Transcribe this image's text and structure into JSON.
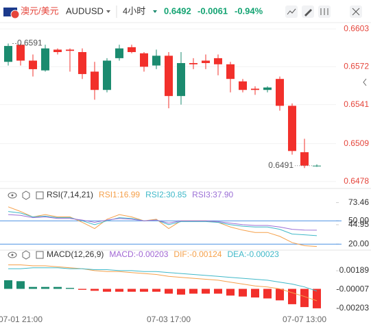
{
  "toolbar": {
    "pair": "澳元/美元",
    "symbol": "AUDUSD",
    "interval": "4小时",
    "price": "0.6492",
    "change": "-0.0061",
    "change_pct": "-0.94%"
  },
  "chart_data": [
    {
      "type": "candlestick",
      "up_color": "#1b8b6f",
      "down_color": "#f2302b",
      "axis_color": "#e5453b",
      "grid": true,
      "categories": [
        null,
        "07-01 21:00",
        null,
        null,
        null,
        null,
        null,
        null,
        null,
        null,
        null,
        null,
        null,
        "07-03 17:00",
        null,
        null,
        null,
        null,
        null,
        null,
        null,
        null,
        null,
        null,
        "07-07 13:00",
        null
      ],
      "open": [
        0.6576,
        0.659,
        0.6577,
        0.6569,
        0.6586,
        0.6586,
        0.6584,
        0.6568,
        0.6553,
        0.6579,
        0.6588,
        0.6583,
        0.6573,
        0.6581,
        0.6548,
        0.6575,
        0.6577,
        0.6579,
        0.6574,
        0.656,
        0.6554,
        0.6553,
        0.6562,
        0.654,
        0.6502,
        0.6491
      ],
      "high": [
        0.6591,
        0.6591,
        0.6582,
        0.659,
        0.6587,
        0.6587,
        0.6587,
        0.6576,
        0.6579,
        0.659,
        0.659,
        0.6584,
        0.6586,
        0.6584,
        0.6584,
        0.6579,
        0.6582,
        0.6582,
        0.6576,
        0.6562,
        0.6556,
        0.6556,
        0.6564,
        0.6542,
        0.6513,
        0.6492
      ],
      "low": [
        0.6573,
        0.6573,
        0.6564,
        0.6568,
        0.6582,
        0.6568,
        0.6562,
        0.6545,
        0.6551,
        0.6577,
        0.6583,
        0.6568,
        0.657,
        0.6538,
        0.6541,
        0.657,
        0.657,
        0.6565,
        0.6551,
        0.6551,
        0.6549,
        0.6551,
        0.6536,
        0.65,
        0.6489,
        0.649
      ],
      "close": [
        0.6589,
        0.6577,
        0.657,
        0.6587,
        0.6584,
        0.6585,
        0.6566,
        0.6553,
        0.6577,
        0.6587,
        0.6584,
        0.6572,
        0.6581,
        0.6548,
        0.6575,
        0.6574,
        0.6575,
        0.6574,
        0.6562,
        0.6553,
        0.6553,
        0.6555,
        0.654,
        0.6503,
        0.6491,
        0.6491
      ],
      "ylim": [
        0.6474,
        0.6607
      ],
      "yticks": [
        0.6603,
        0.6572,
        0.6541,
        0.6509,
        0.6478
      ],
      "high_mark": {
        "value": 0.6591,
        "label": "0.6591"
      },
      "last_mark": {
        "value": 0.6491,
        "label": "0.6491"
      }
    },
    {
      "type": "line",
      "title": "RSI(7,14,21)",
      "axis_color": "#333333",
      "level_color": "#4a90e2",
      "ylim": [
        14,
        74
      ],
      "yticks": [
        73.46,
        {
          "value": 50,
          "label": "50.00"
        },
        44.95,
        {
          "value": 20,
          "label": "20.00"
        }
      ],
      "levels": [
        50,
        20
      ],
      "series": [
        {
          "name": "RSI1:16.99",
          "color": "#f5a04a",
          "values": [
            68,
            62,
            55,
            58,
            55,
            55,
            48,
            40,
            52,
            58,
            55,
            50,
            52,
            40,
            50,
            50,
            50,
            48,
            42,
            38,
            35,
            35,
            30,
            22,
            18,
            16.99
          ]
        },
        {
          "name": "RSI2:30.85",
          "color": "#3fb8c8",
          "values": [
            62,
            60,
            55,
            56,
            54,
            54,
            50,
            45,
            50,
            54,
            53,
            50,
            51,
            45,
            49,
            49,
            49,
            48,
            45,
            43,
            42,
            42,
            39,
            33,
            32,
            30.85
          ]
        },
        {
          "name": "RSI3:37.90",
          "color": "#9b6fd6",
          "values": [
            58,
            57,
            54,
            55,
            53,
            53,
            51,
            48,
            51,
            53,
            52,
            50,
            51,
            47,
            50,
            50,
            50,
            49,
            47,
            45,
            44,
            44,
            42,
            39,
            38,
            37.9
          ]
        }
      ]
    },
    {
      "type": "macd",
      "title": "MACD(12,26,9)",
      "axis_color": "#333333",
      "up_color": "#1b8b6f",
      "down_color": "#f2302b",
      "ylim": [
        -0.00275,
        0.00275
      ],
      "yticks": [
        0.00189,
        -7e-05,
        -0.00203
      ],
      "series": [
        {
          "name": "MACD:-0.00203",
          "type": "bar",
          "color": "#a066d3",
          "values": [
            0.0009,
            0.0008,
            0.0002,
            0.0002,
            0.0002,
            0.0001,
            -0.0001,
            -0.0002,
            -0.0003,
            -0.0003,
            -0.0003,
            -0.0003,
            -0.0003,
            -0.0005,
            -0.0006,
            -0.0005,
            -0.0005,
            -0.0005,
            -0.0007,
            -0.0008,
            -0.0009,
            -0.001,
            -0.0012,
            -0.0016,
            -0.0019,
            -0.00203
          ]
        },
        {
          "name": "DIF:-0.00124",
          "type": "line",
          "color": "#f5a04a",
          "values": [
            0.0025,
            0.0025,
            0.0024,
            0.0024,
            0.0023,
            0.0022,
            0.0021,
            0.0019,
            0.0018,
            0.0018,
            0.0017,
            0.0016,
            0.0015,
            0.0013,
            0.0012,
            0.0011,
            0.001,
            0.0009,
            0.0007,
            0.0005,
            0.0003,
            0.0002,
            0.0,
            -0.0004,
            -0.0008,
            -0.00124
          ]
        },
        {
          "name": "DEA:-0.00023",
          "type": "line",
          "color": "#3fb8c8",
          "values": [
            0.0021,
            0.0021,
            0.0022,
            0.0022,
            0.0022,
            0.0021,
            0.0021,
            0.002,
            0.002,
            0.0019,
            0.0019,
            0.0018,
            0.0018,
            0.0017,
            0.0016,
            0.0015,
            0.0014,
            0.0013,
            0.0012,
            0.0011,
            0.001,
            0.0009,
            0.0007,
            0.0005,
            0.0002,
            -0.00023
          ]
        }
      ]
    }
  ]
}
